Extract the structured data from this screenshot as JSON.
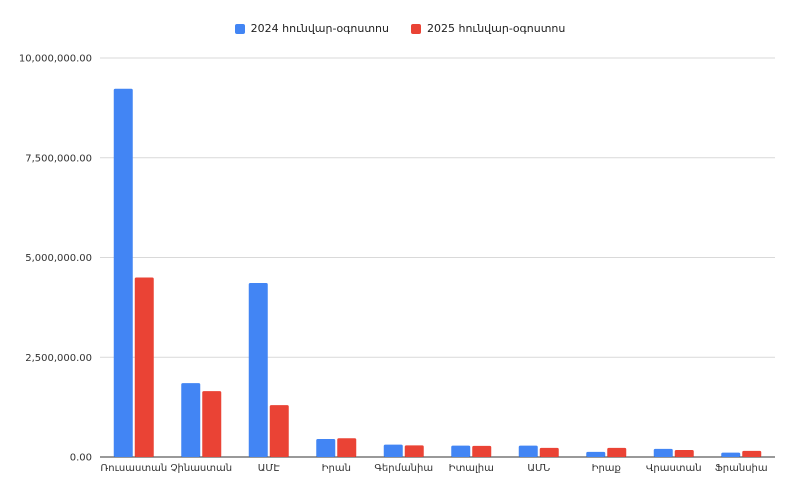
{
  "colors": {
    "series_2024": "#4285f4",
    "series_2025": "#ea4335",
    "grid": "#d9d9d9",
    "axis": "#333333"
  },
  "legend": {
    "series_2024_label": "2024 հունվար-օգոստոս",
    "series_2025_label": "2025 հունվար-օգոստոս"
  },
  "chart_data": {
    "type": "bar",
    "title": "",
    "xlabel": "",
    "ylabel": "",
    "ylim": [
      0,
      10000000
    ],
    "y_ticks": [
      {
        "value": 0,
        "label": "0.00"
      },
      {
        "value": 2500000,
        "label": "2,500,000.00"
      },
      {
        "value": 5000000,
        "label": "5,000,000.00"
      },
      {
        "value": 7500000,
        "label": "7,500,000.00"
      },
      {
        "value": 10000000,
        "label": "10,000,000.00"
      }
    ],
    "grid": true,
    "legend_position": "top",
    "categories": [
      "Ռուսաստան",
      "Չինաստան",
      "ԱՄԷ",
      "Իրան",
      "Գերմանիա",
      "Իտալիա",
      "ԱՄՆ",
      "Իրաք",
      "Վրաստան",
      "Ֆրանսիա"
    ],
    "series": [
      {
        "name": "2024 հունվար-օգոստոս",
        "color": "#4285f4",
        "values": [
          9230000,
          1850000,
          4360000,
          450000,
          310000,
          285000,
          285000,
          130000,
          205000,
          110000
        ]
      },
      {
        "name": "2025 հունվար-օգոստոս",
        "color": "#ea4335",
        "values": [
          4500000,
          1650000,
          1300000,
          470000,
          290000,
          280000,
          230000,
          230000,
          175000,
          155000
        ]
      }
    ]
  }
}
